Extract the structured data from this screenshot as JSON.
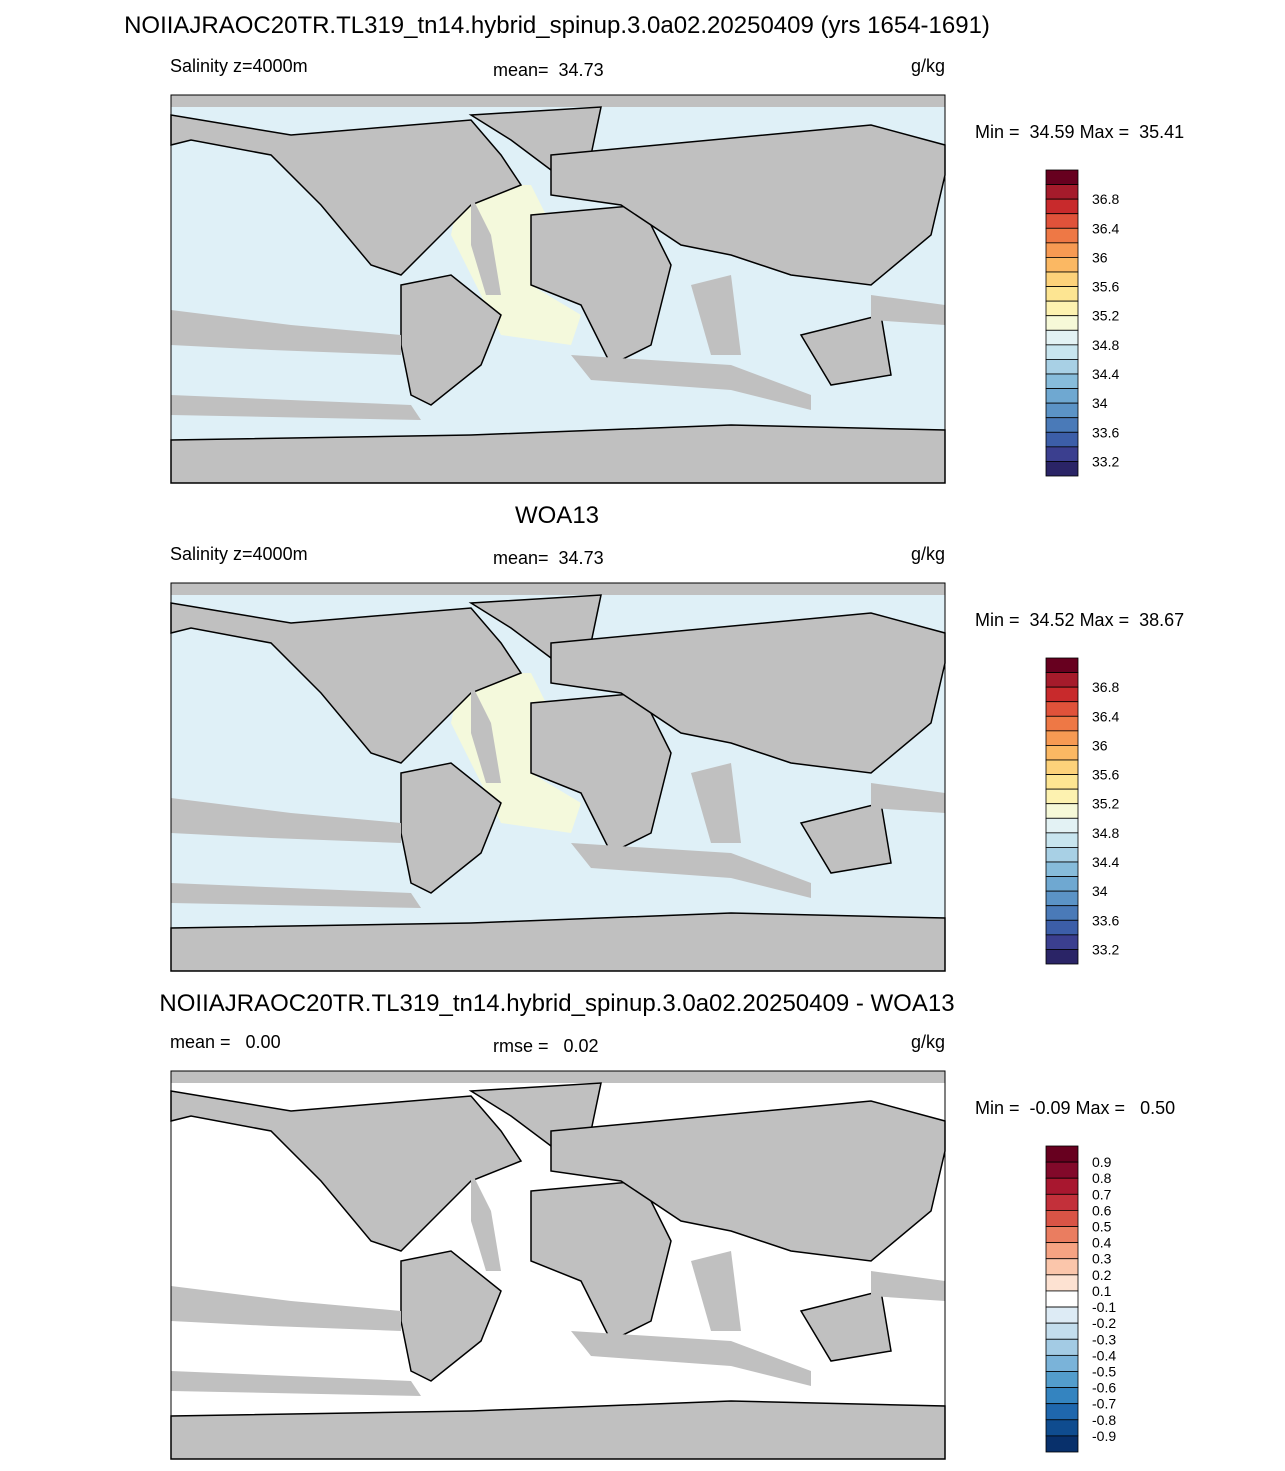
{
  "panels": [
    {
      "title": "NOIIAJRAOC20TR.TL319_tn14.hybrid_spinup.3.0a02.20250409 (yrs 1654-1691)",
      "left_label": "Salinity z=4000m",
      "center_label": "mean=  34.73",
      "units": "g/kg",
      "minmax": "Min =  34.59 Max =  35.41",
      "colorbar": {
        "labels": [
          "36.8",
          "36.4",
          "36",
          "35.6",
          "35.2",
          "34.8",
          "34.4",
          "34",
          "33.6",
          "33.2"
        ],
        "colors": [
          "#67001f",
          "#a51b2b",
          "#c82a2c",
          "#e0523a",
          "#ee7845",
          "#f79a53",
          "#fbb863",
          "#fdd27a",
          "#fde592",
          "#fdf2b0",
          "#f6f9d8",
          "#e3f2f4",
          "#c8e5ef",
          "#a8d0e5",
          "#87bcdb",
          "#6fa8d1",
          "#5b93c6",
          "#4a7ab8",
          "#3c5ea8",
          "#3b3f8f",
          "#2a2466"
        ]
      }
    },
    {
      "title": "WOA13",
      "left_label": "Salinity z=4000m",
      "center_label": "mean=  34.73",
      "units": "g/kg",
      "minmax": "Min =  34.52 Max =  38.67",
      "colorbar": {
        "labels": [
          "36.8",
          "36.4",
          "36",
          "35.6",
          "35.2",
          "34.8",
          "34.4",
          "34",
          "33.6",
          "33.2"
        ],
        "colors": [
          "#67001f",
          "#a51b2b",
          "#c82a2c",
          "#e0523a",
          "#ee7845",
          "#f79a53",
          "#fbb863",
          "#fdd27a",
          "#fde592",
          "#fdf2b0",
          "#f6f9d8",
          "#e3f2f4",
          "#c8e5ef",
          "#a8d0e5",
          "#87bcdb",
          "#6fa8d1",
          "#5b93c6",
          "#4a7ab8",
          "#3c5ea8",
          "#3b3f8f",
          "#2a2466"
        ]
      }
    },
    {
      "title": "NOIIAJRAOC20TR.TL319_tn14.hybrid_spinup.3.0a02.20250409 - WOA13",
      "left_label": "mean =   0.00",
      "center_label": "rmse =   0.02",
      "units": "g/kg",
      "minmax": "Min =  -0.09 Max =   0.50",
      "colorbar": {
        "labels": [
          "0.9",
          "0.8",
          "0.7",
          "0.6",
          "0.5",
          "0.4",
          "0.3",
          "0.2",
          "0.1",
          "-0.1",
          "-0.2",
          "-0.3",
          "-0.4",
          "-0.5",
          "-0.6",
          "-0.7",
          "-0.8",
          "-0.9"
        ],
        "colors": [
          "#67001f",
          "#82092a",
          "#a8172f",
          "#c3303a",
          "#d95446",
          "#ea7d60",
          "#f6a383",
          "#fbc6ab",
          "#fde2d2",
          "#ffffff",
          "#ddebf5",
          "#c3dded",
          "#a3cbe4",
          "#7ab3d9",
          "#539dcc",
          "#3484c0",
          "#1f67ad",
          "#0f4c8f",
          "#08306b"
        ]
      }
    }
  ]
}
